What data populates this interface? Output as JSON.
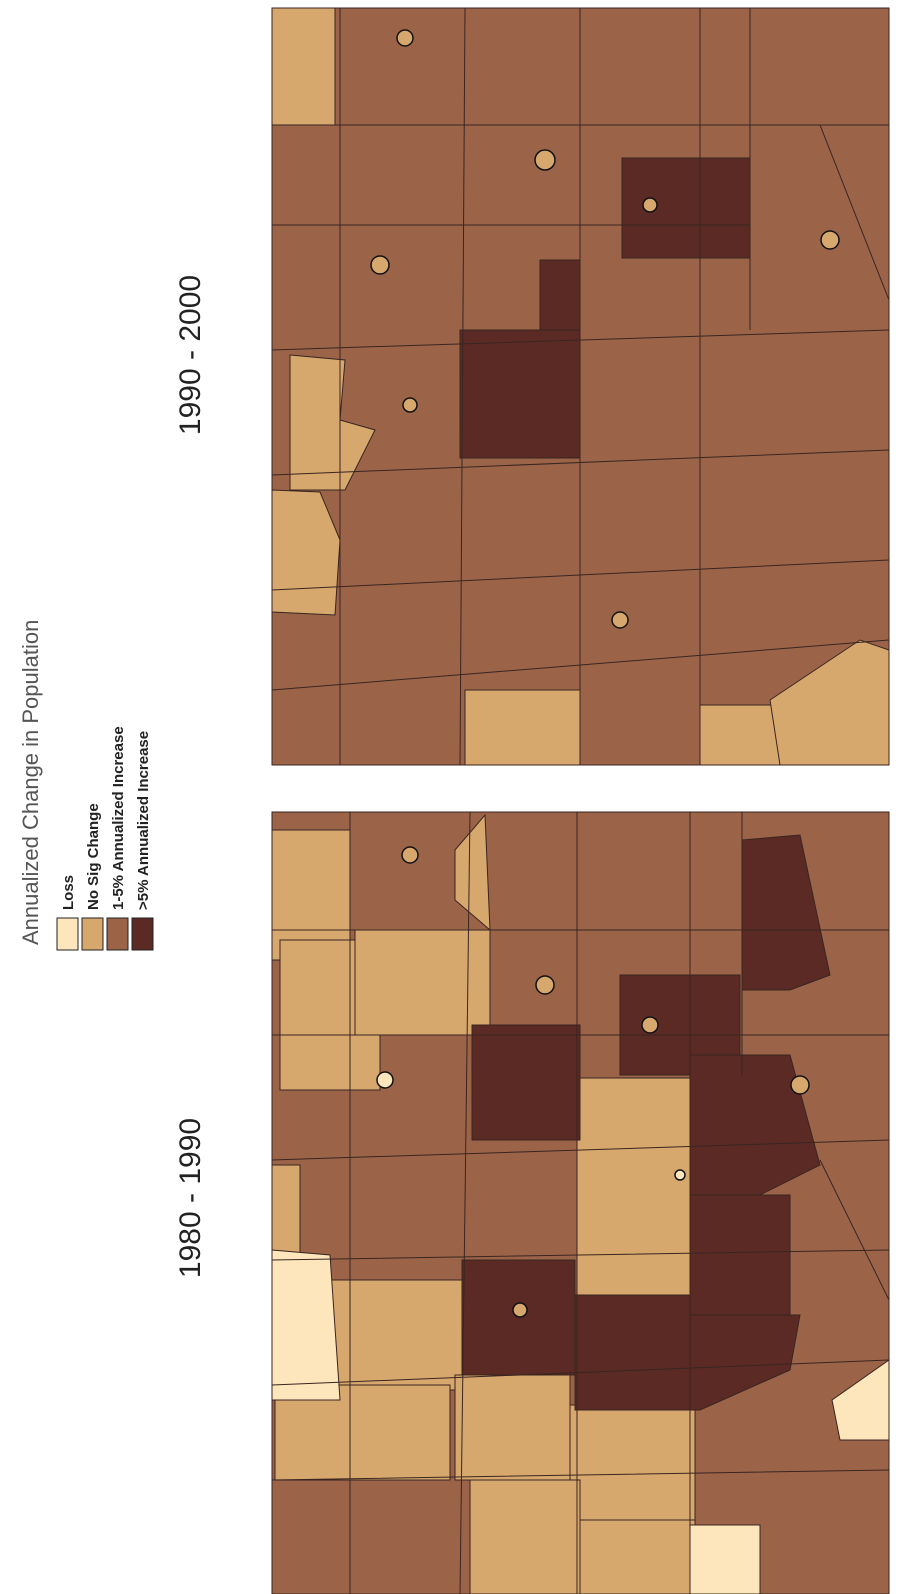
{
  "legend": {
    "title": "Annualized Change in Population",
    "items": [
      {
        "label": "Loss",
        "color": "#fde6bb"
      },
      {
        "label": "No Sig Change",
        "color": "#d7a86e"
      },
      {
        "label": "1-5%  Annualized Increase",
        "color": "#9b6449"
      },
      {
        "label": ">5%  Annualized Increase",
        "color": "#5b2a25"
      }
    ]
  },
  "panels": [
    {
      "title": "1990 - 2000"
    },
    {
      "title": "1980 - 1990"
    }
  ]
}
